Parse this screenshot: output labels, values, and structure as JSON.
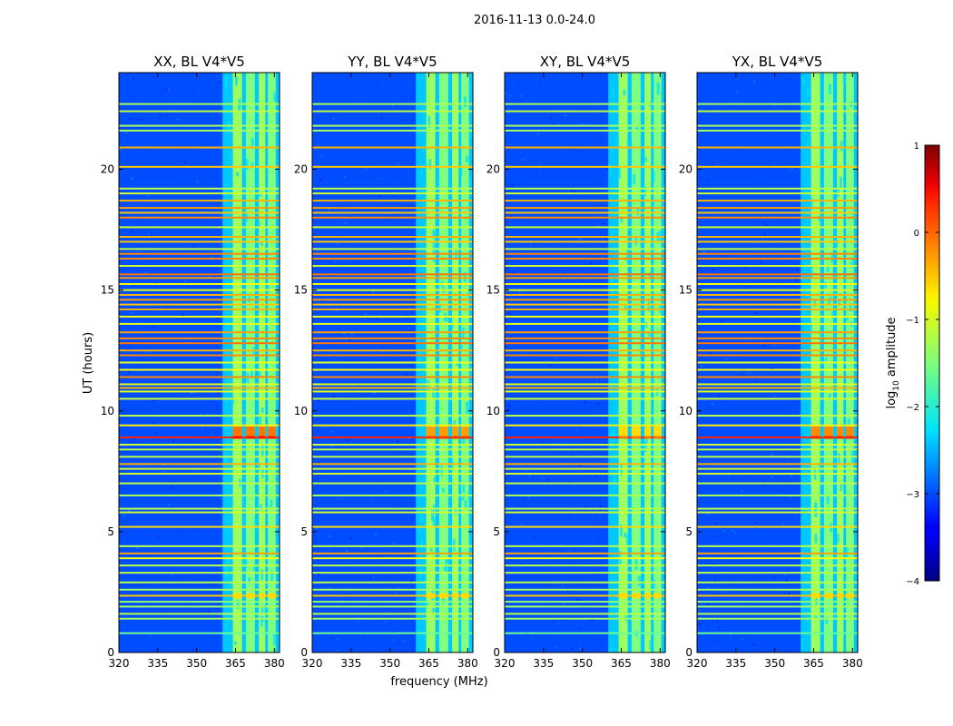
{
  "suptitle": "2016-11-13 0.0-24.0",
  "colormap": "jet",
  "chart_data": {
    "type": "heatmap",
    "shared": {
      "xlabel": "frequency (MHz)",
      "ylabel": "UT (hours)",
      "xlim": [
        320,
        382
      ],
      "ylim": [
        0,
        24
      ],
      "xticks": [
        320,
        335,
        350,
        365,
        380
      ],
      "yticks": [
        0,
        5,
        10,
        15,
        20
      ],
      "background_log_amplitude": -3.0,
      "signal_band_mhz": [
        360,
        382
      ],
      "signal_channels_mhz": [
        {
          "start": 364.0,
          "end": 367.5
        },
        {
          "start": 369.0,
          "end": 372.5
        },
        {
          "start": 374.0,
          "end": 376.5
        },
        {
          "start": 377.5,
          "end": 380.5
        }
      ],
      "rfi_rows": [
        {
          "ut": 0.8,
          "v": -1.6
        },
        {
          "ut": 1.4,
          "v": -1.3
        },
        {
          "ut": 1.6,
          "v": -1.2
        },
        {
          "ut": 1.9,
          "v": -1.3
        },
        {
          "ut": 2.1,
          "v": -1.4
        },
        {
          "ut": 2.35,
          "v": -0.6
        },
        {
          "ut": 2.6,
          "v": -1.3
        },
        {
          "ut": 2.9,
          "v": -1.2
        },
        {
          "ut": 3.3,
          "v": -1.2
        },
        {
          "ut": 3.6,
          "v": -1.2
        },
        {
          "ut": 3.9,
          "v": -0.9
        },
        {
          "ut": 4.1,
          "v": -0.4
        },
        {
          "ut": 4.4,
          "v": -1.2
        },
        {
          "ut": 5.2,
          "v": -0.7
        },
        {
          "ut": 5.8,
          "v": -1.1
        },
        {
          "ut": 5.95,
          "v": -1.2
        },
        {
          "ut": 6.5,
          "v": -1.3
        },
        {
          "ut": 7.0,
          "v": -1.2
        },
        {
          "ut": 7.4,
          "v": -1.1
        },
        {
          "ut": 7.6,
          "v": -1.1
        },
        {
          "ut": 7.8,
          "v": -0.5
        },
        {
          "ut": 8.1,
          "v": -1.2
        },
        {
          "ut": 8.4,
          "v": -1.2
        },
        {
          "ut": 8.6,
          "v": -1.1
        },
        {
          "ut": 8.9,
          "v": 0.2
        },
        {
          "ut": 9.4,
          "v": -0.8
        },
        {
          "ut": 9.8,
          "v": -1.2
        },
        {
          "ut": 10.5,
          "v": -1.1
        },
        {
          "ut": 10.8,
          "v": -1.0
        },
        {
          "ut": 10.95,
          "v": -0.5
        },
        {
          "ut": 11.1,
          "v": -1.0
        },
        {
          "ut": 11.4,
          "v": -0.3
        },
        {
          "ut": 11.7,
          "v": -0.9
        },
        {
          "ut": 12.0,
          "v": -1.0
        },
        {
          "ut": 12.3,
          "v": -0.3
        },
        {
          "ut": 12.5,
          "v": -0.5
        },
        {
          "ut": 12.8,
          "v": -0.2
        },
        {
          "ut": 13.0,
          "v": -0.3
        },
        {
          "ut": 13.25,
          "v": -0.4
        },
        {
          "ut": 13.6,
          "v": -1.0
        },
        {
          "ut": 13.9,
          "v": -0.9
        },
        {
          "ut": 14.2,
          "v": -0.5
        },
        {
          "ut": 14.4,
          "v": -0.6
        },
        {
          "ut": 14.6,
          "v": -0.4
        },
        {
          "ut": 14.8,
          "v": -0.5
        },
        {
          "ut": 15.0,
          "v": -1.0
        },
        {
          "ut": 15.25,
          "v": -0.9
        },
        {
          "ut": 15.5,
          "v": -0.4
        },
        {
          "ut": 15.65,
          "v": -0.2
        },
        {
          "ut": 16.0,
          "v": -1.1
        },
        {
          "ut": 16.3,
          "v": -0.3
        },
        {
          "ut": 16.5,
          "v": -0.3
        },
        {
          "ut": 16.7,
          "v": -1.2
        },
        {
          "ut": 17.0,
          "v": -0.6
        },
        {
          "ut": 17.2,
          "v": -0.5
        },
        {
          "ut": 17.6,
          "v": -1.1
        },
        {
          "ut": 18.0,
          "v": -0.3
        },
        {
          "ut": 18.2,
          "v": -0.6
        },
        {
          "ut": 18.4,
          "v": -0.4
        },
        {
          "ut": 18.7,
          "v": -0.5
        },
        {
          "ut": 19.0,
          "v": -1.1
        },
        {
          "ut": 19.2,
          "v": -1.2
        },
        {
          "ut": 20.1,
          "v": -0.6
        },
        {
          "ut": 20.9,
          "v": -0.5
        },
        {
          "ut": 21.6,
          "v": -1.3
        },
        {
          "ut": 21.8,
          "v": -1.3
        },
        {
          "ut": 22.4,
          "v": -1.2
        },
        {
          "ut": 22.7,
          "v": -1.3
        }
      ]
    },
    "panels": [
      {
        "title": "XX, BL V4*V5",
        "flare_ut": 8.9,
        "flare_v": 0.3
      },
      {
        "title": "YY, BL V4*V5",
        "flare_ut": 8.9,
        "flare_v": 0.1
      },
      {
        "title": "XY, BL V4*V5",
        "flare_ut": 8.9,
        "flare_v": -0.2
      },
      {
        "title": "YX, BL V4*V5",
        "flare_ut": 8.9,
        "flare_v": 0.2
      }
    ],
    "colorbar": {
      "label_html": "log₁₀ amplitude",
      "label_base": "log",
      "label_sub": "10",
      "label_rest": " amplitude",
      "range": [
        -4,
        1
      ],
      "ticks": [
        {
          "value": 1,
          "label": "1"
        },
        {
          "value": 0,
          "label": "0"
        },
        {
          "value": -1,
          "label": "−1"
        },
        {
          "value": -2,
          "label": "−2"
        },
        {
          "value": -3,
          "label": "−3"
        },
        {
          "value": -4,
          "label": "−4"
        }
      ]
    }
  }
}
